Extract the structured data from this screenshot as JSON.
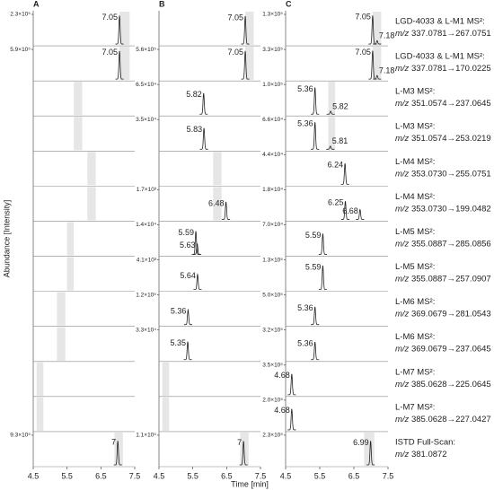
{
  "chart_data": {
    "type": "chromatogram",
    "x_label": "Time [min]",
    "y_label": "Abundance [Intensity]",
    "columns": [
      "A",
      "B",
      "C"
    ],
    "xlim": [
      4.5,
      7.5
    ],
    "xticks": [
      4.5,
      5.5,
      6.5,
      7.5
    ],
    "rows": [
      {
        "name": "LGD-4033 & L-M1 MS²:",
        "mz": "m/z",
        "transition": "337.0781→267.0751",
        "panels": [
          {
            "ylim": [
              0,
              230000
            ],
            "yticks": [
              {
                "value": 230000,
                "label": "2.3×10⁵"
              }
            ],
            "window": [
              7.05,
              7.35
            ],
            "peaks": [
              {
                "x": 7.05,
                "y": 220000
              }
            ]
          },
          {
            "ylim": [
              0,
              250000
            ],
            "window": [
              7.05,
              7.3
            ],
            "peaks": [
              {
                "x": 7.05,
                "y": 235000
              }
            ]
          },
          {
            "ylim": [
              0,
              130000
            ],
            "yticks": [
              {
                "value": 130000,
                "label": "1.3×10⁵"
              }
            ],
            "window": [
              7.05,
              7.3
            ],
            "peaks": [
              {
                "x": 7.05,
                "y": 125000
              },
              {
                "x": 7.18,
                "y": 15000
              }
            ]
          }
        ]
      },
      {
        "name": "LGD-4033 & L-M1 MS²:",
        "mz": "m/z",
        "transition": "337.0781→170.0225",
        "panels": [
          {
            "ylim": [
              0,
              590000
            ],
            "yticks": [
              {
                "value": 590000,
                "label": "5.9×10⁵"
              }
            ],
            "window": [
              7.05,
              7.35
            ],
            "peaks": [
              {
                "x": 7.05,
                "y": 560000
              }
            ]
          },
          {
            "ylim": [
              0,
              560000
            ],
            "yticks": [
              {
                "value": 560000,
                "label": "5.6×10⁵"
              }
            ],
            "window": [
              7.05,
              7.3
            ],
            "peaks": [
              {
                "x": 7.05,
                "y": 530000
              }
            ]
          },
          {
            "ylim": [
              0,
              330000
            ],
            "yticks": [
              {
                "value": 330000,
                "label": "3.3×10⁵"
              }
            ],
            "window": [
              7.05,
              7.3
            ],
            "peaks": [
              {
                "x": 7.05,
                "y": 315000
              },
              {
                "x": 7.18,
                "y": 40000
              }
            ]
          }
        ]
      },
      {
        "name": "L-M3 MS²:",
        "mz": "m/z",
        "transition": "351.0574→237.0645",
        "panels": [
          {
            "window": [
              5.7,
              5.95
            ]
          },
          {
            "ylim": [
              0,
              65000
            ],
            "yticks": [
              {
                "value": 65000,
                "label": "6.5×10⁴"
              }
            ],
            "peaks": [
              {
                "x": 5.82,
                "y": 46000
              }
            ]
          },
          {
            "ylim": [
              0,
              100000
            ],
            "yticks": [
              {
                "value": 100000,
                "label": "1.0×10⁵"
              }
            ],
            "window": [
              5.75,
              5.95
            ],
            "peaks": [
              {
                "x": 5.36,
                "y": 90000
              },
              {
                "x": 5.82,
                "y": 10000
              }
            ]
          }
        ]
      },
      {
        "name": "L-M3 MS²:",
        "mz": "m/z",
        "transition": "351.0574→253.0219",
        "panels": [
          {
            "window": [
              5.7,
              5.95
            ]
          },
          {
            "ylim": [
              0,
              35000
            ],
            "yticks": [
              {
                "value": 35000,
                "label": "3.5×10⁴"
              }
            ],
            "peaks": [
              {
                "x": 5.83,
                "y": 25000
              }
            ]
          },
          {
            "ylim": [
              0,
              66000
            ],
            "yticks": [
              {
                "value": 66000,
                "label": "6.6×10⁴"
              }
            ],
            "window": [
              5.75,
              5.95
            ],
            "peaks": [
              {
                "x": 5.36,
                "y": 60000
              },
              {
                "x": 5.81,
                "y": 7000
              }
            ]
          }
        ]
      },
      {
        "name": "L-M4 MS²:",
        "mz": "m/z",
        "transition": "353.0730→255.0751",
        "panels": [
          {
            "window": [
              6.1,
              6.35
            ]
          },
          {
            "window": [
              6.1,
              6.35
            ]
          },
          {
            "ylim": [
              0,
              44000
            ],
            "yticks": [
              {
                "value": 44000,
                "label": "4.4×10⁴"
              }
            ],
            "peaks": [
              {
                "x": 6.24,
                "y": 31000
              }
            ]
          }
        ]
      },
      {
        "name": "L-M4 MS²:",
        "mz": "m/z",
        "transition": "353.0730→199.0482",
        "panels": [
          {
            "window": [
              6.1,
              6.35
            ]
          },
          {
            "ylim": [
              0,
              1700
            ],
            "yticks": [
              {
                "value": 1700,
                "label": "1.7×10³"
              }
            ],
            "window": [
              6.1,
              6.35
            ],
            "peaks": [
              {
                "x": 6.48,
                "y": 1000
              }
            ]
          },
          {
            "ylim": [
              0,
              18000
            ],
            "yticks": [
              {
                "value": 18000,
                "label": "1.8×10⁴"
              }
            ],
            "peaks": [
              {
                "x": 6.25,
                "y": 11000
              },
              {
                "x": 6.68,
                "y": 6000
              }
            ]
          }
        ]
      },
      {
        "name": "L-M5 MS²:",
        "mz": "m/z",
        "transition": "355.0887→285.0856",
        "panels": [
          {
            "window": [
              5.5,
              5.7
            ]
          },
          {
            "ylim": [
              0,
              14000
            ],
            "yticks": [
              {
                "value": 14000,
                "label": "1.4×10⁴"
              }
            ],
            "peaks": [
              {
                "x": 5.59,
                "y": 11000
              },
              {
                "x": 5.63,
                "y": 5000
              }
            ]
          },
          {
            "ylim": [
              0,
              70000
            ],
            "yticks": [
              {
                "value": 70000,
                "label": "7.0×10⁴"
              }
            ],
            "peaks": [
              {
                "x": 5.59,
                "y": 49000
              }
            ]
          }
        ]
      },
      {
        "name": "L-M5 MS²:",
        "mz": "m/z",
        "transition": "355.0887→257.0907",
        "panels": [
          {
            "window": [
              5.5,
              5.7
            ]
          },
          {
            "ylim": [
              0,
              4100
            ],
            "yticks": [
              {
                "value": 4100,
                "label": "4.1×10³"
              }
            ],
            "peaks": [
              {
                "x": 5.64,
                "y": 2100
              }
            ]
          },
          {
            "ylim": [
              0,
              130000
            ],
            "yticks": [
              {
                "value": 130000,
                "label": "1.3×10⁵"
              }
            ],
            "peaks": [
              {
                "x": 5.59,
                "y": 105000
              }
            ]
          }
        ]
      },
      {
        "name": "L-M6 MS²:",
        "mz": "m/z",
        "transition": "369.0679→281.0543",
        "panels": [
          {
            "window": [
              5.2,
              5.45
            ]
          },
          {
            "ylim": [
              0,
              120000
            ],
            "yticks": [
              {
                "value": 120000,
                "label": "1.2×10⁵"
              }
            ],
            "peaks": [
              {
                "x": 5.36,
                "y": 60000
              }
            ]
          },
          {
            "ylim": [
              0,
              500000
            ],
            "yticks": [
              {
                "value": 500000,
                "label": "5.0×10⁵"
              }
            ],
            "peaks": [
              {
                "x": 5.36,
                "y": 300000
              }
            ]
          }
        ]
      },
      {
        "name": "L-M6 MS²:",
        "mz": "m/z",
        "transition": "369.0679→237.0645",
        "panels": [
          {
            "window": [
              5.2,
              5.45
            ]
          },
          {
            "ylim": [
              0,
              33000
            ],
            "yticks": [
              {
                "value": 33000,
                "label": "3.3×10⁴"
              }
            ],
            "peaks": [
              {
                "x": 5.35,
                "y": 20000
              }
            ]
          },
          {
            "ylim": [
              0,
              320000
            ],
            "yticks": [
              {
                "value": 320000,
                "label": "3.2×10⁵"
              }
            ],
            "peaks": [
              {
                "x": 5.36,
                "y": 190000
              }
            ]
          }
        ]
      },
      {
        "name": "L-M7 MS²:",
        "mz": "m/z",
        "transition": "385.0628→225.0645",
        "panels": [
          {
            "window": [
              4.6,
              4.8
            ]
          },
          {
            "window": [
              4.6,
              4.8
            ]
          },
          {
            "ylim": [
              0,
              350000
            ],
            "yticks": [
              {
                "value": 350000,
                "label": "3.5×10⁵"
              }
            ],
            "peaks": [
              {
                "x": 4.68,
                "y": 245000
              }
            ]
          }
        ]
      },
      {
        "name": "L-M7 MS²:",
        "mz": "m/z",
        "transition": "385.0628→227.0427",
        "panels": [
          {
            "window": [
              4.6,
              4.8
            ]
          },
          {
            "window": [
              4.6,
              4.8
            ]
          },
          {
            "ylim": [
              0,
              200000
            ],
            "yticks": [
              {
                "value": 200000,
                "label": "2.0×10⁵"
              }
            ],
            "peaks": [
              {
                "x": 4.68,
                "y": 140000
              }
            ]
          }
        ]
      },
      {
        "name": "ISTD Full-Scan:",
        "mz": "m/z",
        "transition": "381.0872",
        "panels": [
          {
            "ylim": [
              0,
              930000
            ],
            "yticks": [
              {
                "value": 930000,
                "label": "9.3×10⁵"
              }
            ],
            "window": [
              6.9,
              7.15
            ],
            "peaks": [
              {
                "x": 7.0,
                "y": 750000
              }
            ]
          },
          {
            "ylim": [
              0,
              110000
            ],
            "yticks": [
              {
                "value": 110000,
                "label": "1.1×10⁵"
              }
            ],
            "window": [
              6.9,
              7.15
            ],
            "peaks": [
              {
                "x": 7.0,
                "y": 88000
              }
            ]
          },
          {
            "ylim": [
              0,
              230000
            ],
            "yticks": [
              {
                "value": 230000,
                "label": "2.3×10⁵"
              }
            ],
            "window": [
              6.8,
              7.1
            ],
            "peaks": [
              {
                "x": 6.99,
                "y": 185000
              }
            ]
          }
        ]
      }
    ]
  }
}
